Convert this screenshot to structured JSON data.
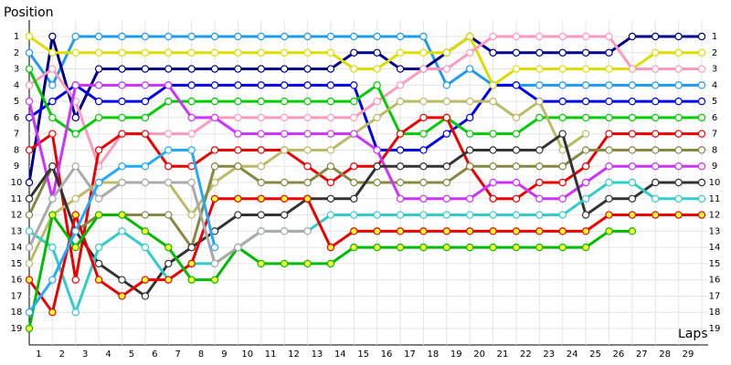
{
  "chart_data": {
    "type": "line",
    "y_label": "Position",
    "x_label": "Laps",
    "x": [
      0,
      1,
      2,
      3,
      4,
      5,
      6,
      7,
      8,
      9,
      10,
      11,
      12,
      13,
      14,
      15,
      16,
      17,
      18,
      19,
      20,
      21,
      22,
      23,
      24,
      25,
      26,
      27,
      28,
      29
    ],
    "xlim": [
      0,
      29
    ],
    "xticks": [
      1,
      2,
      3,
      4,
      5,
      6,
      7,
      8,
      9,
      10,
      11,
      12,
      13,
      14,
      15,
      16,
      17,
      18,
      19,
      20,
      21,
      22,
      23,
      24,
      25,
      26,
      27,
      28,
      29
    ],
    "ylim": [
      1,
      19
    ],
    "yticks": [
      1,
      2,
      3,
      4,
      5,
      6,
      7,
      8,
      9,
      10,
      11,
      12,
      13,
      14,
      15,
      16,
      17,
      18,
      19
    ],
    "y_inverted": true,
    "grid": true,
    "series": [
      {
        "color": "#1e9bf0",
        "marker_fill": "#ffffff",
        "values": [
          2,
          4,
          1,
          1,
          1,
          1,
          1,
          1,
          1,
          1,
          1,
          1,
          1,
          1,
          1,
          1,
          1,
          1,
          4,
          3,
          4,
          4,
          4,
          4,
          4,
          4,
          4,
          4,
          4,
          4
        ]
      },
      {
        "color": "#00008b",
        "marker_fill": "#ffffff",
        "values": [
          10,
          1,
          6,
          3,
          3,
          3,
          3,
          3,
          3,
          3,
          3,
          3,
          3,
          3,
          2,
          2,
          3,
          3,
          2,
          1,
          2,
          2,
          2,
          2,
          2,
          2,
          1,
          1,
          1,
          1
        ]
      },
      {
        "color": "#0000ee",
        "marker_fill": "#ffffff",
        "values": [
          6,
          5,
          4,
          5,
          5,
          5,
          4,
          4,
          4,
          4,
          4,
          4,
          4,
          4,
          4,
          8,
          8,
          8,
          7,
          6,
          4,
          4,
          5,
          5,
          5,
          5,
          5,
          5,
          5,
          5
        ]
      },
      {
        "color": "#dddd00",
        "marker_fill": "#ffffff",
        "values": [
          1,
          2,
          2,
          2,
          2,
          2,
          2,
          2,
          2,
          2,
          2,
          2,
          2,
          2,
          3,
          3,
          2,
          2,
          2,
          1,
          4,
          3,
          3,
          3,
          3,
          3,
          3,
          2,
          2,
          2
        ]
      },
      {
        "color": "#ff99bb",
        "marker_fill": "#ffffff",
        "values": [
          4,
          3,
          5,
          9,
          7,
          7,
          7,
          7,
          6,
          6,
          6,
          6,
          6,
          6,
          6,
          5,
          4,
          3,
          3,
          2,
          1,
          1,
          1,
          1,
          1,
          1,
          3,
          3,
          3,
          3
        ]
      },
      {
        "color": "#00cc00",
        "marker_fill": "#ffffff",
        "values": [
          3,
          6,
          7,
          6,
          6,
          6,
          5,
          5,
          5,
          5,
          5,
          5,
          5,
          5,
          5,
          4,
          7,
          7,
          6,
          7,
          7,
          7,
          6,
          6,
          6,
          6,
          6,
          6,
          6,
          6
        ]
      },
      {
        "color": "#ee0000",
        "marker_fill": "#ffffff",
        "values": [
          8,
          7,
          16,
          8,
          7,
          7,
          9,
          9,
          8,
          8,
          8,
          8,
          9,
          10,
          9,
          9,
          7,
          6,
          6,
          9,
          11,
          11,
          10,
          10,
          9,
          7,
          7,
          7,
          7,
          7
        ]
      },
      {
        "color": "#bbbb66",
        "marker_fill": "#ffffff",
        "values": [
          15,
          12,
          11,
          10,
          10,
          10,
          10,
          12,
          10,
          9,
          9,
          8,
          8,
          8,
          7,
          6,
          5,
          5,
          5,
          5,
          5,
          6,
          5,
          8,
          7,
          null,
          null,
          null,
          null,
          null
        ]
      },
      {
        "color": "#888844",
        "marker_fill": "#ffffff",
        "values": [
          12,
          9,
          13,
          12,
          12,
          12,
          12,
          14,
          9,
          9,
          10,
          10,
          10,
          9,
          10,
          10,
          10,
          10,
          10,
          9,
          9,
          9,
          9,
          9,
          8,
          8,
          8,
          8,
          8,
          8
        ]
      },
      {
        "color": "#cc33ff",
        "marker_fill": "#ffffff",
        "values": [
          5,
          11,
          4,
          4,
          4,
          4,
          4,
          6,
          6,
          7,
          7,
          7,
          7,
          7,
          7,
          8,
          11,
          11,
          11,
          11,
          10,
          10,
          11,
          11,
          10,
          9,
          9,
          9,
          9,
          9
        ]
      },
      {
        "color": "#333333",
        "marker_fill": "#ffffff",
        "values": [
          11,
          9,
          13,
          15,
          16,
          17,
          15,
          14,
          13,
          12,
          12,
          12,
          11,
          11,
          11,
          9,
          9,
          9,
          9,
          8,
          8,
          8,
          8,
          7,
          12,
          11,
          11,
          10,
          10,
          10
        ]
      },
      {
        "color": "#33cccc",
        "marker_fill": "#ffffff",
        "values": [
          13,
          14,
          18,
          14,
          13,
          14,
          16,
          15,
          15,
          14,
          13,
          13,
          13,
          12,
          12,
          12,
          12,
          12,
          12,
          12,
          12,
          12,
          12,
          12,
          11,
          10,
          10,
          11,
          11,
          11
        ]
      },
      {
        "color": "#ee0000",
        "marker_fill": "#ffff33",
        "values": [
          16,
          18,
          12,
          16,
          17,
          16,
          16,
          15,
          11,
          11,
          11,
          11,
          11,
          14,
          13,
          13,
          13,
          13,
          13,
          13,
          13,
          13,
          13,
          13,
          13,
          12,
          12,
          12,
          12,
          12
        ]
      },
      {
        "color": "#00bb00",
        "marker_fill": "#ffff33",
        "values": [
          19,
          12,
          14,
          12,
          12,
          13,
          14,
          16,
          16,
          14,
          15,
          15,
          15,
          15,
          14,
          14,
          14,
          14,
          14,
          14,
          14,
          14,
          14,
          14,
          14,
          13,
          13,
          null,
          null,
          null
        ]
      },
      {
        "color": "#aaaaaa",
        "marker_fill": "#ffffff",
        "values": [
          14,
          11,
          9,
          11,
          10,
          10,
          10,
          10,
          15,
          14,
          13,
          13,
          13,
          null,
          null,
          null,
          null,
          null,
          null,
          null,
          null,
          null,
          null,
          null,
          null,
          null,
          null,
          null,
          null,
          null
        ]
      },
      {
        "color": "#22aaff",
        "marker_fill": "#ffffff",
        "values": [
          18,
          16,
          13,
          10,
          9,
          9,
          8,
          8,
          14,
          null,
          null,
          null,
          null,
          null,
          null,
          null,
          null,
          null,
          null,
          null,
          null,
          null,
          null,
          null,
          null,
          null,
          null,
          null,
          null,
          null
        ]
      }
    ]
  }
}
